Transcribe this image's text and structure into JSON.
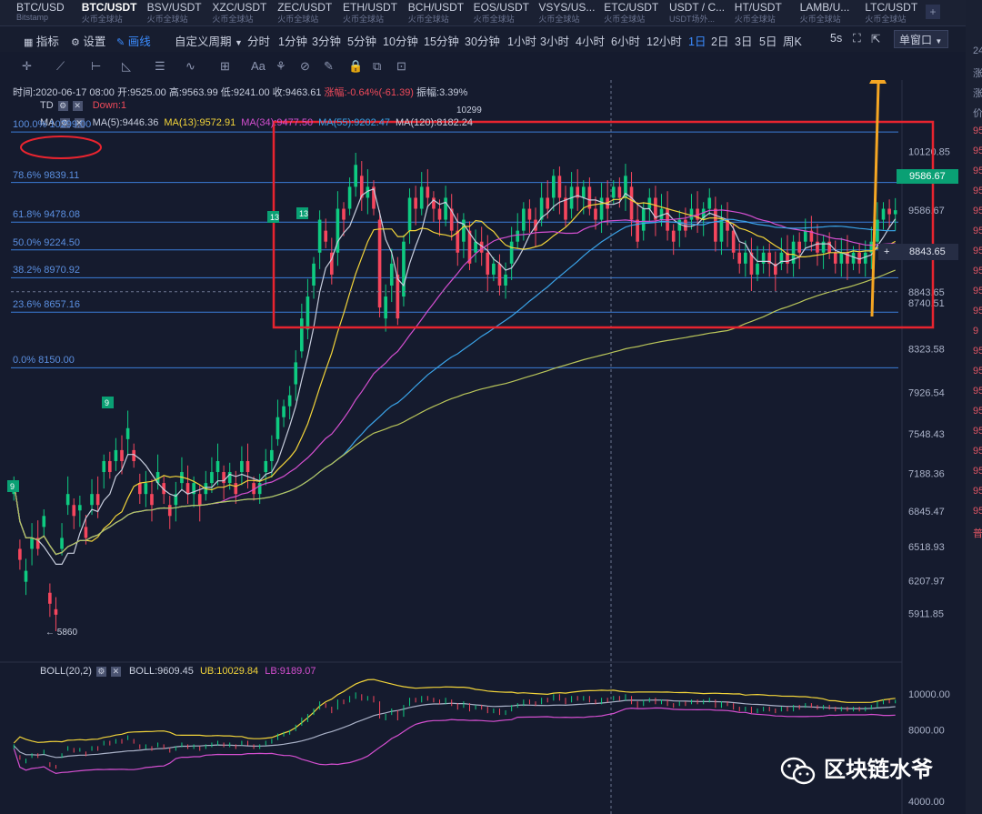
{
  "tabs": [
    {
      "name": "BTC/USD",
      "sub": "Bitstamp"
    },
    {
      "name": "BTC/USDT",
      "sub": "火币全球站",
      "active": true
    },
    {
      "name": "BSV/USDT",
      "sub": "火币全球站"
    },
    {
      "name": "XZC/USDT",
      "sub": "火币全球站"
    },
    {
      "name": "ZEC/USDT",
      "sub": "火币全球站"
    },
    {
      "name": "ETH/USDT",
      "sub": "火币全球站"
    },
    {
      "name": "BCH/USDT",
      "sub": "火币全球站"
    },
    {
      "name": "EOS/USDT",
      "sub": "火币全球站"
    },
    {
      "name": "VSYS/US...",
      "sub": "火币全球站"
    },
    {
      "name": "ETC/USDT",
      "sub": "火币全球站"
    },
    {
      "name": "USDT / C...",
      "sub": "USDT场外..."
    },
    {
      "name": "HT/USDT",
      "sub": "火币全球站"
    },
    {
      "name": "LAMB/U...",
      "sub": "火币全球站"
    },
    {
      "name": "LTC/USDT",
      "sub": "火币全球站"
    }
  ],
  "tab_add": "+",
  "toolbar": {
    "indicator": "指标",
    "settings": "设置",
    "draw": "画线",
    "custom_period": "自定义周期",
    "periods": [
      "分时",
      "1分钟",
      "3分钟",
      "5分钟",
      "10分钟",
      "15分钟",
      "30分钟",
      "1小时",
      "3小时",
      "4小时",
      "6小时",
      "12小时",
      "1日",
      "2日",
      "3日",
      "5日",
      "周K"
    ],
    "active_period": "1日",
    "resolution": "5s",
    "window_mode": "单窗口"
  },
  "icons": [
    "crosshair-icon",
    "trend-line-icon",
    "ruler-icon",
    "fibonacci-icon",
    "wave-icon",
    "grid-icon",
    "text-icon",
    "brush-icon",
    "magnet-icon",
    "pencil-icon",
    "lock-icon",
    "copy-icon",
    "screenshot-icon",
    "trash-icon"
  ],
  "info": {
    "time": "时间:2020-06-17 08:00",
    "open": "开:9525.00",
    "high": "高:9563.99",
    "low": "低:9241.00",
    "close": "收:9463.61",
    "change": "涨幅:-0.64%(-61.39)",
    "amplitude": "振幅:3.39%"
  },
  "td": {
    "label": "TD",
    "down": "Down:1"
  },
  "ma": {
    "label": "MA",
    "items": [
      {
        "text": "MA(5):9446.36",
        "color": "#c8cede"
      },
      {
        "text": "MA(13):9572.91",
        "color": "#f2d43a"
      },
      {
        "text": "MA(34):9477.50",
        "color": "#d44fd0"
      },
      {
        "text": "MA(55):9202.47",
        "color": "#3aa3e8"
      },
      {
        "text": "MA(120):8182.24",
        "color": "#c8cede"
      }
    ]
  },
  "boll": {
    "label": "BOLL(20,2)",
    "boll": "BOLL:9609.45",
    "ub": "UB:10029.84",
    "lb": "LB:9189.07"
  },
  "fib_levels": [
    {
      "label": "100.0% 10299.00",
      "value": 10299
    },
    {
      "label": "78.6% 9839.11",
      "value": 9839.11
    },
    {
      "label": "61.8% 9478.08",
      "value": 9478.08
    },
    {
      "label": "50.0% 9224.50",
      "value": 9224.5
    },
    {
      "label": "38.2% 8970.92",
      "value": 8970.92
    },
    {
      "label": "23.6% 8657.16",
      "value": 8657.16
    },
    {
      "label": "0.0% 8150.00",
      "value": 8150
    }
  ],
  "annotations": {
    "high": "10299",
    "low": "← 5860",
    "td_marks": [
      "9",
      "9",
      "13",
      "13"
    ]
  },
  "price_tag": "9586.67",
  "crosshair_value": "8843.65",
  "crosshair_plus": "+",
  "right_panel_values": [
    "24",
    "涨",
    "涨",
    "价",
    "95",
    "95",
    "95",
    "95",
    "95",
    "95",
    "95",
    "95",
    "95",
    "95",
    "9",
    "95",
    "95",
    "95",
    "95",
    "95",
    "95",
    "95",
    "95",
    "95",
    "普"
  ],
  "watermark": "区块链水爷",
  "colors": {
    "up": "#0ecb81",
    "down": "#f6465d",
    "highlight_box": "#e8242f",
    "arrow": "#f5a623",
    "fib": "#3b7dd8"
  },
  "chart_data": {
    "type": "candlestick",
    "ylim": [
      5700,
      10400
    ],
    "yticks": [
      10120.85,
      9586.67,
      9178.33,
      8843.65,
      8740.51,
      8323.58,
      7926.54,
      7548.43,
      7188.36,
      6845.47,
      6518.93,
      6207.97,
      5911.85
    ],
    "close": [
      7100,
      6400,
      6300,
      6600,
      6500,
      6800,
      6000,
      5900,
      6600,
      7000,
      6800,
      6900,
      6600,
      7000,
      6900,
      7300,
      7200,
      7400,
      7300,
      7600,
      7300,
      7000,
      7100,
      6900,
      7200,
      7000,
      6800,
      7000,
      7200,
      7000,
      7100,
      6900,
      7100,
      7200,
      7300,
      7100,
      7200,
      7000,
      7300,
      7200,
      7000,
      7100,
      7300,
      7400,
      7700,
      7800,
      7900,
      8200,
      8600,
      8800,
      9100,
      9500,
      9300,
      9000,
      9600,
      9500,
      9800,
      10000,
      9700,
      9800,
      9600,
      8700,
      8800,
      9100,
      8600,
      9300,
      9700,
      9600,
      9800,
      9700,
      9600,
      9500,
      9700,
      9400,
      9200,
      9500,
      9100,
      9300,
      9200,
      9000,
      9100,
      8900,
      9000,
      9300,
      9400,
      9600,
      9500,
      9400,
      9700,
      9600,
      9900,
      9700,
      9500,
      9800,
      9700,
      9800,
      9600,
      9500,
      9700,
      9600,
      9800,
      9700,
      9900,
      9500,
      9300,
      9600,
      9700,
      9500,
      9600,
      9400,
      9300,
      9500,
      9400,
      9600,
      9500,
      9600,
      9700,
      9300,
      9500,
      9400,
      9200,
      9100,
      9200,
      9000,
      9100,
      9200,
      9100,
      9000,
      9200,
      9100,
      9300,
      9200,
      9400,
      9300,
      9200,
      9300,
      9200,
      9100,
      9200,
      9100,
      9200,
      9100,
      9200,
      9300,
      9500,
      9600,
      9550,
      9586.67
    ],
    "open": [
      7000,
      6500,
      6200,
      6500,
      6600,
      6700,
      6100,
      5950,
      6500,
      6900,
      6900,
      6850,
      6700,
      6900,
      7000,
      7200,
      7300,
      7300,
      7400,
      7500,
      7400,
      7100,
      7000,
      7000,
      7100,
      7100,
      6900,
      6900,
      7100,
      7100,
      7000,
      7000,
      7000,
      7100,
      7200,
      7200,
      7100,
      7100,
      7200,
      7300,
      7100,
      7000,
      7200,
      7300,
      7500,
      7700,
      7800,
      8000,
      8300,
      8500,
      8900,
      9200,
      9400,
      9200,
      9200,
      9600,
      9600,
      9800,
      9900,
      9700,
      9800,
      9500,
      8600,
      8900,
      9000,
      8800,
      9400,
      9700,
      9600,
      9800,
      9700,
      9600,
      9500,
      9600,
      9400,
      9300,
      9400,
      9200,
      9300,
      9200,
      9000,
      9100,
      8900,
      9100,
      9300,
      9400,
      9600,
      9500,
      9500,
      9700,
      9700,
      9900,
      9700,
      9600,
      9800,
      9700,
      9800,
      9600,
      9500,
      9700,
      9700,
      9800,
      9700,
      9800,
      9500,
      9400,
      9600,
      9700,
      9500,
      9600,
      9400,
      9400,
      9500,
      9500,
      9600,
      9500,
      9600,
      9600,
      9300,
      9500,
      9400,
      9200,
      9100,
      9200,
      9000,
      9100,
      9200,
      9100,
      9100,
      9200,
      9100,
      9300,
      9300,
      9400,
      9300,
      9200,
      9300,
      9200,
      9100,
      9200,
      9100,
      9200,
      9100,
      9200,
      9300,
      9500,
      9600,
      9550
    ],
    "ma_lines": [
      "MA(5)",
      "MA(13)",
      "MA(34)",
      "MA(55)",
      "MA(120)"
    ],
    "boll_ylim": [
      3800,
      10400
    ],
    "boll_yticks": [
      10000,
      8000,
      4000
    ]
  }
}
